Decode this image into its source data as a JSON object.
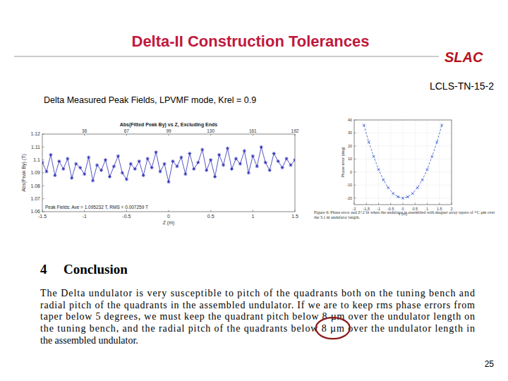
{
  "slide": {
    "title": "Delta-II Construction Tolerances",
    "logo": "SLAC",
    "reference": "LCLS-TN-15-2",
    "subtitle": "Delta Measured Peak Fields, LPVMF mode, Krel = 0.9",
    "page_number": "25"
  },
  "chart_data": [
    {
      "type": "line",
      "title": "Abs(Fitted Peak By) vs Z, Excluding Ends",
      "x_label": "Z (m)",
      "y_label": "Abs(Peak By) (T)",
      "annotation": "Peak Fields: Ave = 1.095232 T, RMS = 0.007259 T",
      "x": [
        -1.5,
        -1.45,
        -1.4,
        -1.35,
        -1.3,
        -1.25,
        -1.2,
        -1.15,
        -1.1,
        -1.05,
        -1,
        -0.95,
        -0.9,
        -0.85,
        -0.8,
        -0.75,
        -0.7,
        -0.65,
        -0.6,
        -0.55,
        -0.5,
        -0.45,
        -0.4,
        -0.35,
        -0.3,
        -0.25,
        -0.2,
        -0.15,
        -0.1,
        -0.05,
        0,
        0.05,
        0.1,
        0.15,
        0.2,
        0.25,
        0.3,
        0.35,
        0.4,
        0.45,
        0.5,
        0.55,
        0.6,
        0.65,
        0.7,
        0.75,
        0.8,
        0.85,
        0.9,
        0.95,
        1,
        1.05,
        1.1,
        1.15,
        1.2,
        1.25,
        1.3,
        1.35,
        1.4,
        1.45,
        1.5
      ],
      "values": [
        1.098,
        1.091,
        1.104,
        1.088,
        1.099,
        1.093,
        1.101,
        1.086,
        1.097,
        1.094,
        1.089,
        1.102,
        1.084,
        1.096,
        1.092,
        1.1,
        1.087,
        1.095,
        1.103,
        1.09,
        1.085,
        1.097,
        1.093,
        1.099,
        1.088,
        1.101,
        1.094,
        1.106,
        1.091,
        1.097,
        1.083,
        1.099,
        1.095,
        1.102,
        1.089,
        1.105,
        1.093,
        1.098,
        1.108,
        1.092,
        1.1,
        1.087,
        1.104,
        1.096,
        1.109,
        1.093,
        1.101,
        1.097,
        1.107,
        1.09,
        1.103,
        1.095,
        1.11,
        1.098,
        1.092,
        1.105,
        1.099,
        1.094,
        1.101,
        1.096,
        1.1
      ],
      "color": "#2b2bb8",
      "marker": "star",
      "line_style": "solid",
      "grid": false,
      "xlim": [
        -1.5,
        1.5
      ],
      "ylim": [
        1.06,
        1.12
      ],
      "xticks": [
        -1.5,
        -1,
        -0.5,
        0,
        0.5,
        1,
        1.5
      ],
      "yticks": [
        1.06,
        1.07,
        1.08,
        1.09,
        1.1,
        1.11,
        1.12
      ],
      "x2ticks": [
        {
          "value": -1,
          "label": "36"
        },
        {
          "value": -0.5,
          "label": "67"
        },
        {
          "value": 0,
          "label": "99"
        },
        {
          "value": 0.5,
          "label": "130"
        },
        {
          "value": 1,
          "label": "161"
        },
        {
          "value": 1.5,
          "label": "192"
        }
      ]
    },
    {
      "type": "line",
      "x_label": "z (m)",
      "y_label": "Phase error (deg)",
      "caption": "Figure 6: Phase error and Z^2 fit when the undulator is assembled with magnet array tapers of +C µm over the 3.1 m undulator length.",
      "x": [
        -1.6,
        -1.4,
        -1.2,
        -1,
        -0.8,
        -0.6,
        -0.4,
        -0.2,
        0,
        0.2,
        0.4,
        0.6,
        0.8,
        1,
        1.2,
        1.4,
        1.6
      ],
      "values": [
        36,
        23,
        12,
        2,
        -6,
        -12,
        -16.5,
        -19,
        -20,
        -19,
        -16.5,
        -12,
        -6,
        2,
        12,
        23,
        36
      ],
      "color": "#3355cc",
      "marker": "x",
      "line_style": "dashed",
      "grid": true,
      "xlim": [
        -2,
        2
      ],
      "ylim": [
        -25,
        40
      ],
      "xticks": [
        -2,
        -1.5,
        -1,
        -0.5,
        0,
        0.5,
        1,
        1.5,
        2
      ],
      "yticks": [
        -20,
        -10,
        0,
        10,
        20,
        30,
        40
      ]
    }
  ],
  "conclusion": {
    "number": "4",
    "heading": "Conclusion",
    "lines": [
      "The Delta undulator is very susceptible to pitch of the quadrants both on the tuning bench and",
      "radial pitch of the quadrants in the assembled undulator.  If we are to keep rms phase errors from",
      "taper below 5 degrees, we must keep the quadrant pitch below 8 µm over the undulator length on",
      {
        "before": "the tuning bench, and the radial pitch of the quadrants below ",
        "circled": "8 µm",
        "after": " over the undulator length in"
      },
      "the assembled undulator."
    ]
  }
}
